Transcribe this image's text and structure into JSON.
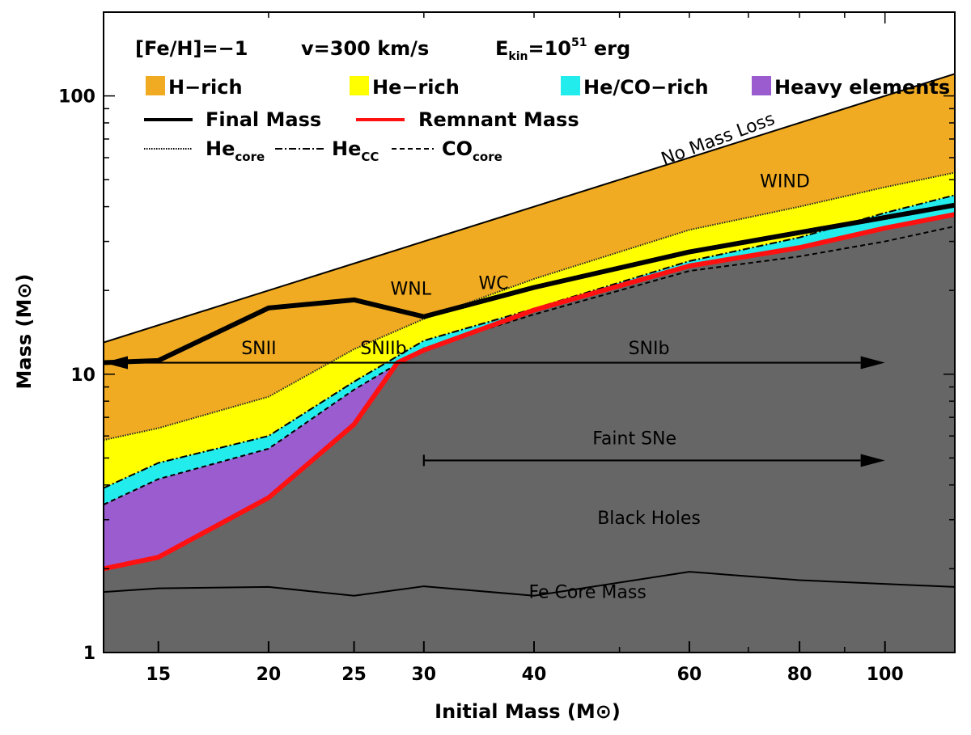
{
  "chart_data": {
    "type": "area",
    "title": "",
    "xlabel": "Initial Mass (M⊙)",
    "ylabel": "Mass (M⊙)",
    "x_scale": "log",
    "y_scale": "log",
    "xlim": [
      13,
      120
    ],
    "ylim": [
      1,
      200
    ],
    "x_ticks": [
      {
        "value": 15,
        "label": "15"
      },
      {
        "value": 20,
        "label": "20"
      },
      {
        "value": 25,
        "label": "25"
      },
      {
        "value": 30,
        "label": "30"
      },
      {
        "value": 40,
        "label": "40"
      },
      {
        "value": 60,
        "label": "60"
      },
      {
        "value": 80,
        "label": "80"
      },
      {
        "value": 100,
        "label": "100"
      }
    ],
    "y_ticks": [
      {
        "value": 1,
        "label": "1"
      },
      {
        "value": 10,
        "label": "10"
      },
      {
        "value": 100,
        "label": "100"
      }
    ],
    "header": {
      "metallicity": "[Fe/H]=−1",
      "velocity": "v=300 km/s",
      "ekin_prefix": "E",
      "ekin_sub": "kin",
      "ekin_eq": "=10",
      "ekin_exp": "51",
      "ekin_unit": " erg"
    },
    "legend_areas": [
      {
        "name": "H−rich",
        "color": "#f0ab22"
      },
      {
        "name": "He−rich",
        "color": "#ffff00"
      },
      {
        "name": "He/CO−rich",
        "color": "#22ecec"
      },
      {
        "name": "Heavy elements",
        "color": "#9a5ccf"
      }
    ],
    "legend_lines": [
      {
        "name": "Final Mass",
        "color": "#000000"
      },
      {
        "name": "Remnant Mass",
        "color": "#ff1111"
      }
    ],
    "legend_cores": [
      {
        "name": "He",
        "sub": "core"
      },
      {
        "name": "He",
        "sub": "CC"
      },
      {
        "name": "CO",
        "sub": "core"
      }
    ],
    "colors": {
      "h_rich": "#f0ab22",
      "he_rich": "#ffff00",
      "heco_rich": "#22ecec",
      "heavy": "#9a5ccf",
      "remnant": "#666666",
      "remnant_line": "#ff1111"
    },
    "series": [
      {
        "key": "no_mass_loss",
        "x": [
          13,
          120
        ],
        "y": [
          13,
          120
        ]
      },
      {
        "key": "final_mass",
        "x": [
          13,
          15,
          20,
          25,
          30,
          40,
          60,
          120
        ],
        "y": [
          11,
          11.2,
          17.3,
          18.5,
          16.1,
          20.5,
          27.5,
          40.5
        ]
      },
      {
        "key": "he_core",
        "x": [
          13,
          15,
          20,
          25,
          30,
          40,
          60,
          80,
          100,
          120
        ],
        "y": [
          5.8,
          6.4,
          8.3,
          12.3,
          15.8,
          22,
          33,
          40,
          47,
          53
        ]
      },
      {
        "key": "he_cc",
        "x": [
          13,
          15,
          20,
          25,
          30,
          40,
          60,
          80,
          100,
          120
        ],
        "y": [
          3.9,
          4.8,
          6.0,
          9.4,
          13.2,
          17.2,
          25.5,
          31,
          38,
          44
        ]
      },
      {
        "key": "co_core",
        "x": [
          13,
          15,
          20,
          25,
          30,
          40,
          60,
          80,
          100,
          120
        ],
        "y": [
          3.4,
          4.2,
          5.4,
          8.8,
          12.4,
          16.4,
          23.5,
          26.5,
          30,
          34
        ]
      },
      {
        "key": "remnant_mass",
        "x": [
          13,
          15,
          20,
          25,
          28,
          30,
          40,
          60,
          80,
          100,
          120
        ],
        "y": [
          2.0,
          2.2,
          3.6,
          6.6,
          11,
          12.2,
          17,
          24.5,
          28.5,
          33.5,
          37.5
        ]
      },
      {
        "key": "fe_core_mass",
        "x": [
          13,
          15,
          20,
          25,
          30,
          40,
          60,
          80,
          120
        ],
        "y": [
          1.65,
          1.7,
          1.72,
          1.6,
          1.73,
          1.6,
          1.95,
          1.82,
          1.72
        ]
      }
    ],
    "arrows": [
      {
        "key": "snii_snib",
        "x_start": 13,
        "x_end": 100,
        "y": 11,
        "left_head": true,
        "right_head": true
      },
      {
        "key": "faint_sne",
        "x_start": 30,
        "x_end": 100,
        "y": 4.9,
        "left_head": false,
        "right_head": true
      }
    ],
    "annotations": [
      {
        "key": "no_mass_loss",
        "text": "No Mass Loss",
        "x": 65,
        "y": 67,
        "rotate": -20.5,
        "size": 24
      },
      {
        "key": "wind",
        "text": "WIND",
        "x": 77,
        "y": 47,
        "rotate": 0,
        "size": 22
      },
      {
        "key": "wnl",
        "text": "WNL",
        "x": 29,
        "y": 19.3,
        "rotate": 0,
        "size": 22
      },
      {
        "key": "wc",
        "text": "WC",
        "x": 36,
        "y": 20.2,
        "rotate": 0,
        "size": 22
      },
      {
        "key": "snii",
        "text": "SNII",
        "x": 19.5,
        "y": 11.8,
        "rotate": 0,
        "size": 22
      },
      {
        "key": "sniib",
        "text": "SNIIb",
        "x": 27,
        "y": 11.8,
        "rotate": 0,
        "size": 22
      },
      {
        "key": "snib",
        "text": "SNIb",
        "x": 54,
        "y": 11.8,
        "rotate": 0,
        "size": 22
      },
      {
        "key": "faint_sne",
        "text": "Faint SNe",
        "x": 52,
        "y": 5.6,
        "rotate": 0,
        "size": 22
      },
      {
        "key": "black_holes",
        "text": "Black Holes",
        "x": 54,
        "y": 2.9,
        "rotate": 0,
        "size": 22
      },
      {
        "key": "fe_core",
        "text": "Fe Core Mass",
        "x": 46,
        "y": 1.57,
        "rotate": 0,
        "size": 22
      }
    ]
  }
}
